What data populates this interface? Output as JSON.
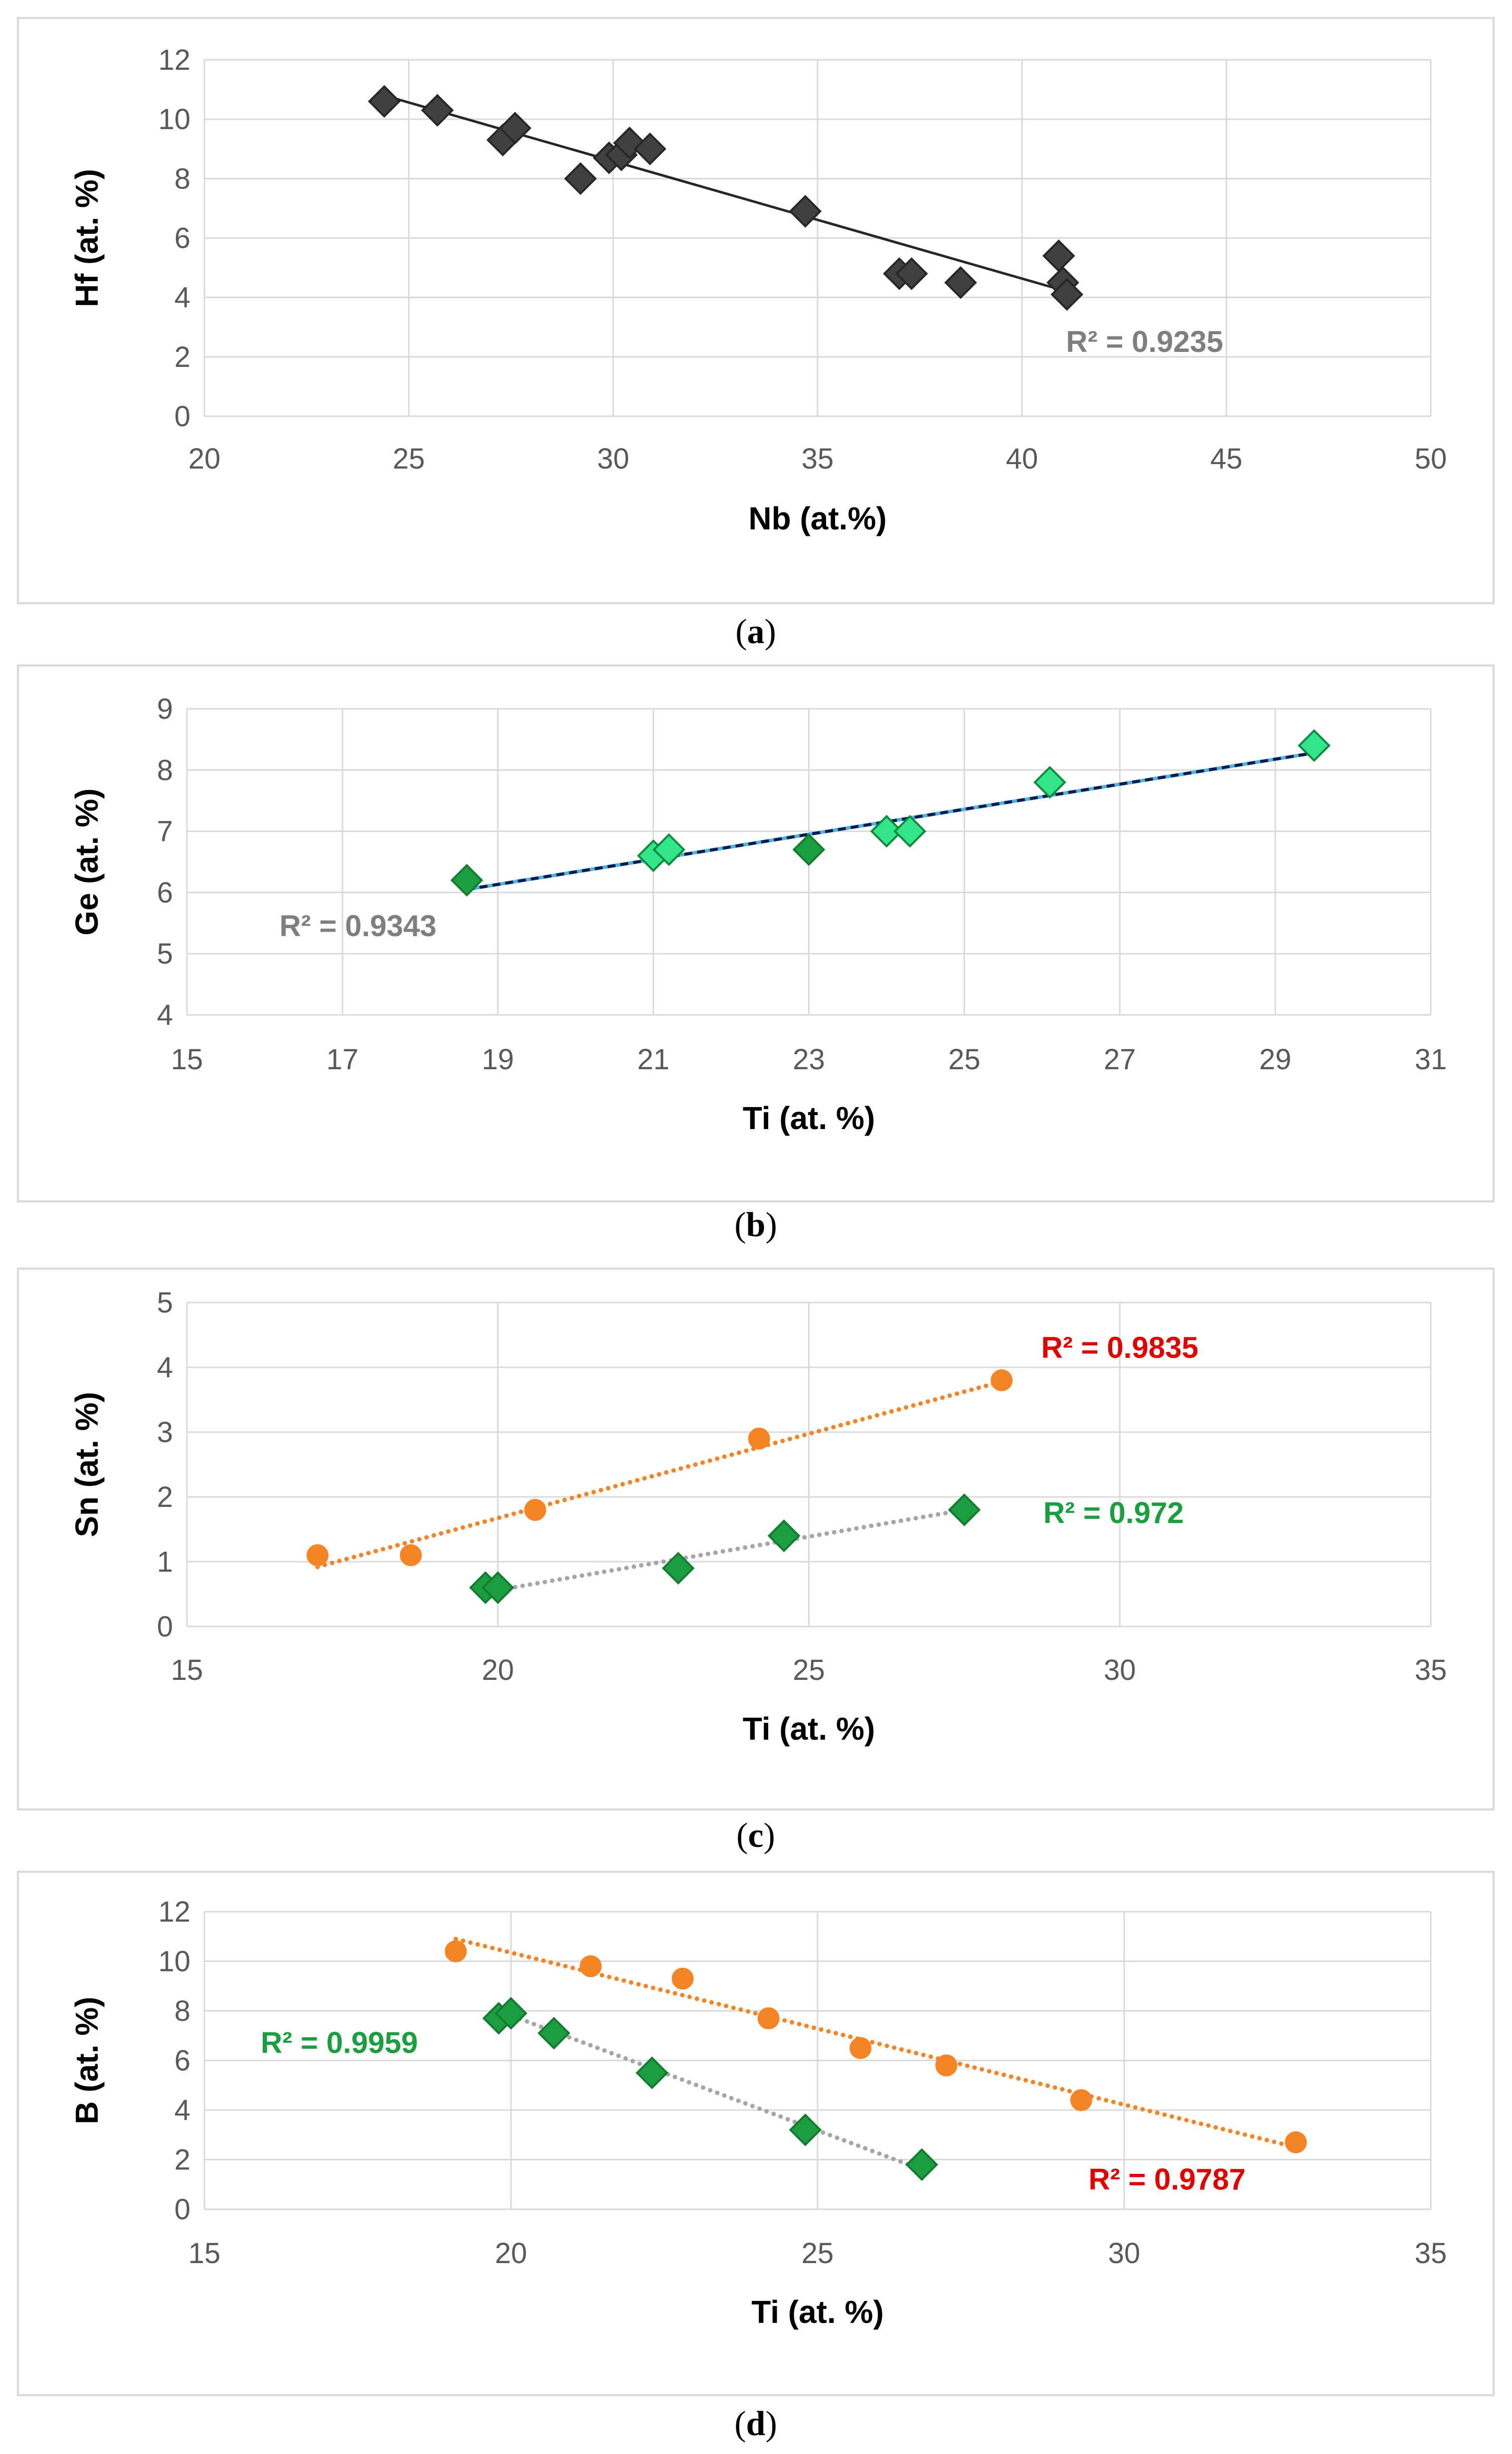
{
  "chart_data": [
    {
      "panel": "(a)",
      "type": "scatter",
      "xlabel": "Nb (at.%)",
      "ylabel": "Hf (at. %)",
      "xlim": [
        20,
        50
      ],
      "xstep": 5,
      "ylim": [
        0,
        12
      ],
      "ystep": 2,
      "series": [
        {
          "name": "Hf vs Nb",
          "marker": "diamond",
          "color": "#404040",
          "stroke": "#262626",
          "points": [
            [
              24.4,
              10.6
            ],
            [
              25.7,
              10.3
            ],
            [
              27.3,
              9.3
            ],
            [
              27.6,
              9.7
            ],
            [
              29.2,
              8.0
            ],
            [
              29.9,
              8.7
            ],
            [
              30.2,
              8.8
            ],
            [
              30.4,
              9.2
            ],
            [
              30.9,
              9.0
            ],
            [
              34.7,
              6.9
            ],
            [
              37.0,
              4.8
            ],
            [
              37.3,
              4.8
            ],
            [
              38.5,
              4.5
            ],
            [
              40.9,
              5.4
            ],
            [
              41.0,
              4.5
            ],
            [
              41.1,
              4.1
            ]
          ],
          "trendline": {
            "style": "solid",
            "color": "#262626",
            "x": [
              24.4,
              41.1
            ],
            "y": [
              10.8,
              4.2
            ]
          },
          "r2": {
            "text": "R² = 0.9235",
            "color": "#7f7f7f",
            "at": [
              43.0,
              2.5
            ]
          }
        }
      ]
    },
    {
      "panel": "(b)",
      "type": "scatter",
      "xlabel": "Ti (at. %)",
      "ylabel": "Ge (at. %)",
      "xlim": [
        15,
        31
      ],
      "xstep": 2,
      "ylim": [
        4,
        9
      ],
      "ystep": 1,
      "series": [
        {
          "name": "Ge (light)",
          "marker": "diamond",
          "color": "#33e58a",
          "stroke": "#0a8a3a",
          "points": [
            [
              21.0,
              6.6
            ],
            [
              21.2,
              6.7
            ],
            [
              24.0,
              7.0
            ],
            [
              24.3,
              7.0
            ],
            [
              26.1,
              7.8
            ],
            [
              29.5,
              8.4
            ]
          ]
        },
        {
          "name": "Ge (dark)",
          "marker": "diamond",
          "color": "#1a9e3f",
          "stroke": "#137a30",
          "points": [
            [
              18.6,
              6.2
            ],
            [
              23.0,
              6.7
            ]
          ],
          "trendline": {
            "style": "dashed",
            "color": "#0d1b4a",
            "underColor": "#4fb3e0",
            "x": [
              18.6,
              29.5
            ],
            "y": [
              6.05,
              8.28
            ]
          },
          "r2": {
            "text": "R² = 0.9343",
            "color": "#7f7f7f",
            "at": [
              17.2,
              5.45
            ]
          }
        }
      ]
    },
    {
      "panel": "(c)",
      "type": "scatter",
      "xlabel": "Ti (at. %)",
      "ylabel": "Sn (at. %)",
      "xlim": [
        15,
        35
      ],
      "xstep": 5,
      "ylim": [
        0,
        5
      ],
      "ystep": 1,
      "series": [
        {
          "name": "Sn orange",
          "marker": "circle",
          "color": "#f58427",
          "stroke": "#f58427",
          "points": [
            [
              17.1,
              1.1
            ],
            [
              18.6,
              1.1
            ],
            [
              20.6,
              1.8
            ],
            [
              24.2,
              2.9
            ],
            [
              28.1,
              3.8
            ]
          ],
          "trendline": {
            "style": "dotted",
            "color": "#f58427",
            "x": [
              17.1,
              28.1
            ],
            "y": [
              0.92,
              3.78
            ]
          },
          "r2": {
            "text": "R² = 0.9835",
            "color": "#e00000",
            "at": [
              30.0,
              4.3
            ]
          }
        },
        {
          "name": "Sn green",
          "marker": "diamond",
          "color": "#1a9e3f",
          "stroke": "#137a30",
          "points": [
            [
              19.8,
              0.6
            ],
            [
              20.0,
              0.6
            ],
            [
              22.9,
              0.9
            ],
            [
              24.6,
              1.4
            ],
            [
              27.5,
              1.8
            ]
          ],
          "trendline": {
            "style": "dotted",
            "color": "#a6a6a6",
            "x": [
              19.8,
              27.5
            ],
            "y": [
              0.53,
              1.8
            ]
          },
          "r2": {
            "text": "R² = 0.972",
            "color": "#1a9e3f",
            "at": [
              29.9,
              1.75
            ]
          }
        }
      ]
    },
    {
      "panel": "(d)",
      "type": "scatter",
      "xlabel": "Ti (at. %)",
      "ylabel": "B (at. %)",
      "xlim": [
        15,
        35
      ],
      "xstep": 5,
      "ylim": [
        0,
        12
      ],
      "ystep": 2,
      "series": [
        {
          "name": "B orange",
          "marker": "circle",
          "color": "#f58427",
          "stroke": "#f58427",
          "points": [
            [
              19.1,
              10.4
            ],
            [
              21.3,
              9.8
            ],
            [
              22.8,
              9.3
            ],
            [
              24.2,
              7.7
            ],
            [
              25.7,
              6.5
            ],
            [
              27.1,
              5.8
            ],
            [
              29.3,
              4.4
            ],
            [
              32.8,
              2.7
            ]
          ],
          "trendline": {
            "style": "dotted",
            "color": "#f58427",
            "x": [
              19.1,
              32.8
            ],
            "y": [
              10.9,
              2.5
            ]
          },
          "r2": {
            "text": "R² = 0.9787",
            "color": "#e00000",
            "at": [
              30.7,
              1.2
            ]
          }
        },
        {
          "name": "B green",
          "marker": "diamond",
          "color": "#1a9e3f",
          "stroke": "#137a30",
          "points": [
            [
              19.8,
              7.7
            ],
            [
              20.0,
              7.9
            ],
            [
              20.7,
              7.1
            ],
            [
              22.3,
              5.5
            ],
            [
              24.8,
              3.2
            ],
            [
              26.7,
              1.8
            ]
          ],
          "trendline": {
            "style": "dotted",
            "color": "#a6a6a6",
            "x": [
              19.8,
              26.7
            ],
            "y": [
              8.0,
              1.6
            ]
          },
          "r2": {
            "text": "R² = 0.9959",
            "color": "#1a9e3f",
            "at": [
              17.2,
              6.7
            ]
          }
        }
      ]
    }
  ]
}
